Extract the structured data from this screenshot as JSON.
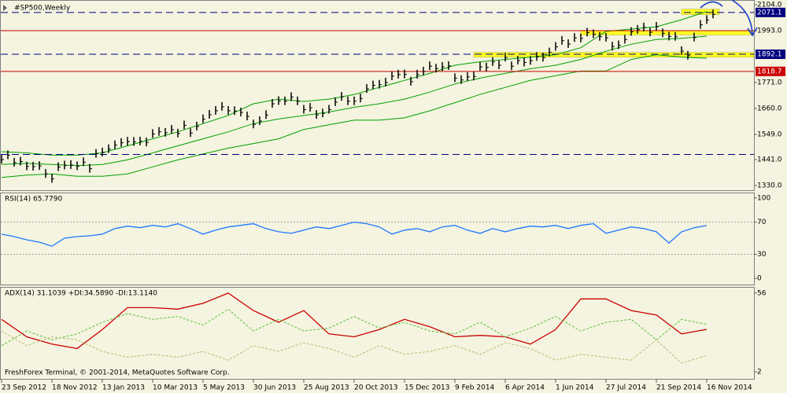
{
  "chart_data": [
    {
      "type": "price",
      "title": "#SP500,Weekly",
      "color": "#000000",
      "values": [
        1441,
        1460,
        1428,
        1433,
        1412,
        1411,
        1414,
        1380,
        1359,
        1409,
        1416,
        1418,
        1413,
        1430,
        1402,
        1466,
        1472,
        1486,
        1503,
        1513,
        1518,
        1517,
        1519,
        1515,
        1551,
        1560,
        1556,
        1569,
        1553,
        1588,
        1555,
        1583,
        1614,
        1633,
        1650,
        1667,
        1650,
        1649,
        1643,
        1626,
        1592,
        1606,
        1632,
        1680,
        1692,
        1691,
        1709,
        1691,
        1655,
        1663,
        1633,
        1639,
        1655,
        1687,
        1710,
        1691,
        1691,
        1703,
        1744,
        1759,
        1762,
        1771,
        1798,
        1805,
        1806,
        1775,
        1805,
        1818,
        1841,
        1831,
        1838,
        1842,
        1790,
        1782,
        1795,
        1797,
        1838,
        1836,
        1859,
        1845,
        1878,
        1841,
        1865,
        1857,
        1864,
        1881,
        1878,
        1900,
        1924,
        1950,
        1936,
        1962,
        1960,
        1985,
        1978,
        1967,
        1963,
        1925,
        1931,
        1955,
        1988,
        1997,
        2007,
        1986,
        2010,
        1982,
        1968,
        1967,
        1906,
        1886,
        1964,
        2018,
        2039,
        2063
      ],
      "xlim": [
        -0.25,
        119.5
      ],
      "xticks": [
        {
          "value": 0,
          "label": "23 Sep 2012"
        },
        {
          "value": 8,
          "label": "18 Nov 2012"
        },
        {
          "value": 16,
          "label": "13 Jan 2013"
        },
        {
          "value": 24,
          "label": "10 Mar 2013"
        },
        {
          "value": 32,
          "label": "5 May 2013"
        },
        {
          "value": 40,
          "label": "30 Jun 2013"
        },
        {
          "value": 48,
          "label": "25 Aug 2013"
        },
        {
          "value": 56,
          "label": "20 Oct 2013"
        },
        {
          "value": 64,
          "label": "15 Dec 2013"
        },
        {
          "value": 72,
          "label": "9 Feb 2014"
        },
        {
          "value": 80,
          "label": "6 Apr 2014"
        },
        {
          "value": 88,
          "label": "1 Jun 2014"
        },
        {
          "value": 96,
          "label": "27 Jul 2014"
        },
        {
          "value": 104,
          "label": "21 Sep 2014"
        },
        {
          "value": 112,
          "label": "16 Nov 2014"
        }
      ],
      "ylim": [
        1310,
        2121
      ],
      "yticks": [
        {
          "value": 2104,
          "label": "2104.0"
        },
        {
          "value": 1993,
          "label": "1993.0"
        },
        {
          "value": 1771,
          "label": "1771.0"
        },
        {
          "value": 1660,
          "label": "1660.0"
        },
        {
          "value": 1549,
          "label": "1549.0"
        },
        {
          "value": 1441,
          "label": "1441.0"
        },
        {
          "value": 1330,
          "label": "1330.0"
        }
      ],
      "bands": {
        "color": "#00a000",
        "x": [
          0,
          4,
          8,
          12,
          16,
          20,
          24,
          28,
          32,
          36,
          40,
          44,
          48,
          52,
          56,
          60,
          64,
          68,
          72,
          76,
          80,
          84,
          88,
          92,
          96,
          100,
          104,
          108,
          112
        ],
        "upper": [
          1475,
          1470,
          1460,
          1460,
          1470,
          1500,
          1530,
          1560,
          1595,
          1630,
          1680,
          1700,
          1690,
          1700,
          1720,
          1750,
          1780,
          1810,
          1845,
          1860,
          1870,
          1880,
          1890,
          1920,
          1990,
          2000,
          2010,
          2040,
          2075
        ],
        "middle": [
          1420,
          1425,
          1420,
          1415,
          1420,
          1440,
          1470,
          1500,
          1530,
          1560,
          1595,
          1615,
          1630,
          1645,
          1665,
          1680,
          1700,
          1730,
          1765,
          1790,
          1810,
          1830,
          1845,
          1870,
          1905,
          1935,
          1955,
          1960,
          1970
        ],
        "lower": [
          1365,
          1375,
          1380,
          1370,
          1370,
          1380,
          1410,
          1440,
          1465,
          1490,
          1510,
          1530,
          1570,
          1590,
          1610,
          1610,
          1620,
          1650,
          1685,
          1720,
          1750,
          1780,
          1800,
          1820,
          1820,
          1870,
          1890,
          1880,
          1875
        ]
      },
      "zones": {
        "color": "#ffff00",
        "items": [
          {
            "x": [
              108,
              114
            ],
            "y": [
              2062,
              2085
            ]
          },
          {
            "x": [
              92,
              119.5
            ],
            "y": [
              1975,
              1993
            ]
          },
          {
            "x": [
              75,
              119.5
            ],
            "y": [
              1880,
              1900
            ]
          }
        ]
      },
      "hlines": [
        {
          "value": 2071.1,
          "color": "#000080",
          "dash": true,
          "labeled": true
        },
        {
          "value": 1993,
          "color": "#cc0000",
          "dash": false,
          "labeled": false
        },
        {
          "value": 1892.1,
          "color": "#000080",
          "dash": true,
          "labeled": true
        },
        {
          "value": 1818.7,
          "color": "#cc0000",
          "dash": false,
          "labeled": true
        },
        {
          "value": 1463,
          "color": "#000080",
          "dash": true,
          "labeled": false
        }
      ]
    },
    {
      "type": "line",
      "title": "RSI(14) 65.7790",
      "xlim": [
        -0.25,
        119.5
      ],
      "ylim": [
        -7.7,
        105.8
      ],
      "yticks": [
        100,
        70,
        30,
        0
      ],
      "hlines": [
        {
          "value": 70,
          "color": "#a0a0a0",
          "dash": true,
          "labeled": false
        },
        {
          "value": 30,
          "color": "#a0a0a0",
          "dash": true,
          "labeled": false
        }
      ],
      "series": [
        {
          "color": "#1e78ff",
          "dash": false,
          "x": [
            0,
            2,
            4,
            6,
            8,
            10,
            12,
            14,
            16,
            18,
            20,
            22,
            24,
            26,
            28,
            30,
            32,
            34,
            36,
            38,
            40,
            42,
            44,
            46,
            48,
            50,
            52,
            54,
            56,
            58,
            60,
            62,
            64,
            66,
            68,
            70,
            72,
            74,
            76,
            78,
            80,
            82,
            84,
            86,
            88,
            90,
            92,
            94,
            96,
            98,
            100,
            102,
            104,
            106,
            108,
            110,
            112
          ],
          "values": [
            55,
            52,
            48,
            45,
            40,
            50,
            52,
            53,
            55,
            62,
            65,
            63,
            66,
            64,
            68,
            62,
            55,
            60,
            64,
            66,
            68,
            62,
            58,
            56,
            60,
            64,
            62,
            66,
            70,
            68,
            64,
            55,
            60,
            62,
            58,
            64,
            66,
            60,
            56,
            62,
            58,
            62,
            65,
            64,
            66,
            62,
            66,
            68,
            56,
            60,
            64,
            62,
            58,
            44,
            58,
            63,
            65.779
          ]
        }
      ]
    },
    {
      "type": "line",
      "title": "ADX(14) 31.1039 +DI:34.5890 -DI:13.1140",
      "footer": "FreshForex Terminal, © 2001-2014, MetaQuotes Software Corp.",
      "xlim": [
        -0.25,
        119.5
      ],
      "ylim": [
        -2.8,
        59.7
      ],
      "yticks": [
        56,
        2
      ],
      "series": [
        {
          "color": "#cc0000",
          "dash": false,
          "x": [
            0,
            4,
            8,
            12,
            16,
            20,
            24,
            28,
            32,
            36,
            40,
            44,
            48,
            52,
            56,
            60,
            64,
            68,
            72,
            76,
            80,
            84,
            88,
            92,
            96,
            100,
            104,
            108,
            112
          ],
          "values": [
            38,
            26,
            21,
            18,
            31,
            46,
            46,
            45,
            49,
            56,
            44,
            36,
            44,
            28,
            26,
            31,
            38,
            33,
            26,
            27,
            26,
            21,
            31,
            52,
            52,
            44,
            41,
            28,
            31.1039
          ]
        },
        {
          "color": "#5cbf3c",
          "dash": true,
          "x": [
            0,
            4,
            8,
            12,
            16,
            20,
            24,
            28,
            32,
            36,
            40,
            44,
            48,
            52,
            56,
            60,
            64,
            68,
            72,
            76,
            80,
            84,
            88,
            92,
            96,
            100,
            104,
            108,
            112
          ],
          "values": [
            20,
            30,
            24,
            28,
            36,
            42,
            38,
            40,
            34,
            45,
            30,
            38,
            30,
            32,
            40,
            32,
            36,
            30,
            28,
            36,
            26,
            32,
            40,
            30,
            36,
            38,
            24,
            38,
            34.589
          ]
        },
        {
          "color": "#b8b870",
          "dash": true,
          "x": [
            0,
            4,
            8,
            12,
            16,
            20,
            24,
            28,
            32,
            36,
            40,
            44,
            48,
            52,
            56,
            60,
            64,
            68,
            72,
            76,
            80,
            84,
            88,
            92,
            96,
            100,
            104,
            108,
            112
          ],
          "values": [
            30,
            20,
            26,
            24,
            16,
            12,
            14,
            12,
            16,
            10,
            20,
            16,
            22,
            18,
            12,
            20,
            14,
            16,
            20,
            14,
            22,
            18,
            10,
            14,
            12,
            10,
            24,
            8,
            13.114
          ]
        }
      ]
    }
  ]
}
